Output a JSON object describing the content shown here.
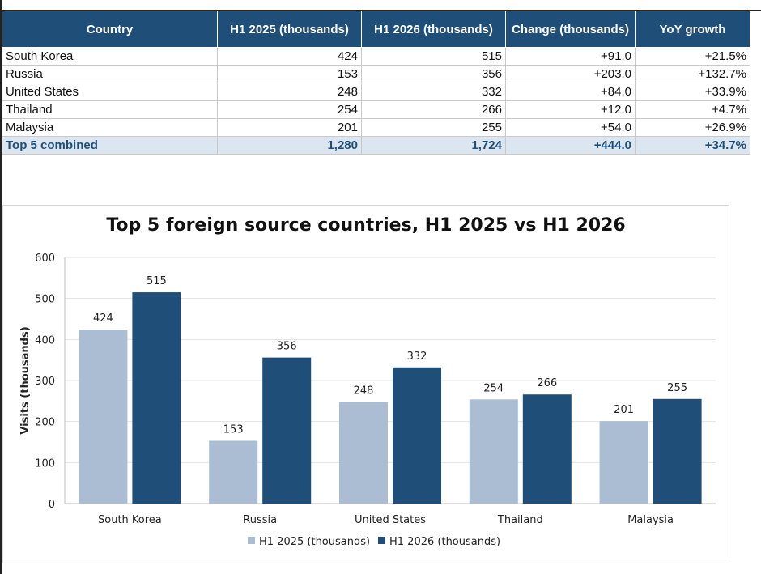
{
  "table": {
    "headers": [
      "Country",
      "H1 2025 (thousands)",
      "H1 2026 (thousands)",
      "Change (thousands)",
      "YoY growth"
    ],
    "rows": [
      [
        "South Korea",
        "424",
        "515",
        "+91.0",
        "+21.5%"
      ],
      [
        "Russia",
        "153",
        "356",
        "+203.0",
        "+132.7%"
      ],
      [
        "United States",
        "248",
        "332",
        "+84.0",
        "+33.9%"
      ],
      [
        "Thailand",
        "254",
        "266",
        "+12.0",
        "+4.7%"
      ],
      [
        "Malaysia",
        "201",
        "255",
        "+54.0",
        "+26.9%"
      ]
    ],
    "total": [
      "Top 5 combined",
      "1,280",
      "1,724",
      "+444.0",
      "+34.7%"
    ]
  },
  "chart_data": {
    "type": "bar",
    "title": "Top 5 foreign source countries, H1 2025 vs H1 2026",
    "xlabel": "",
    "ylabel": "Visits (thousands)",
    "categories": [
      "South Korea",
      "Russia",
      "United States",
      "Thailand",
      "Malaysia"
    ],
    "series": [
      {
        "name": "H1 2025 (thousands)",
        "values": [
          424,
          153,
          248,
          254,
          201
        ],
        "color": "#aabdd3"
      },
      {
        "name": "H1 2026 (thousands)",
        "values": [
          515,
          356,
          332,
          266,
          255
        ],
        "color": "#1f4e79"
      }
    ],
    "ylim": [
      0,
      600
    ],
    "yticks": [
      0,
      100,
      200,
      300,
      400,
      500,
      600
    ],
    "grid": true,
    "legend": "bottom",
    "data_labels": true
  }
}
